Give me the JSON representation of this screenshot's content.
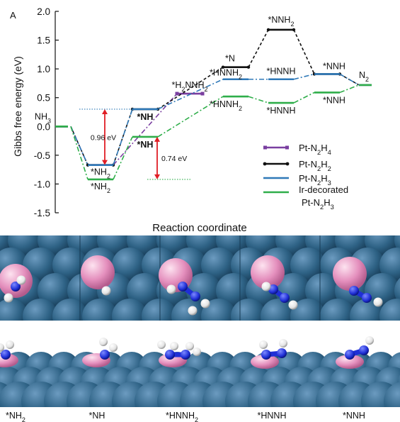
{
  "panel_label": "A",
  "chart_data": {
    "type": "line",
    "xlabel": "Reaction coordinate",
    "ylabel": "Gibbs free energy (eV)",
    "ylim": [
      -1.5,
      2.0
    ],
    "yticks": [
      "2.0",
      "1.5",
      "1.0",
      "0.5",
      "0.0",
      "-0.5",
      "-1.0",
      "-1.5"
    ],
    "grid": false,
    "legend_position": "right",
    "steps": 8,
    "series": [
      {
        "name": "Pt-N2H4",
        "color": "#7a3fa0",
        "style": "dashdot",
        "levels": [
          [
            0,
            0.0
          ],
          [
            1,
            -0.67
          ],
          [
            3,
            0.57
          ]
        ]
      },
      {
        "name": "Pt-N2H2",
        "color": "#111111",
        "style": "dashed",
        "levels": [
          [
            0,
            0.0
          ],
          [
            1,
            -0.67
          ],
          [
            2,
            0.3
          ],
          [
            4,
            1.03
          ],
          [
            5,
            1.68
          ],
          [
            6,
            0.91
          ],
          [
            7,
            0.72
          ]
        ]
      },
      {
        "name": "Pt-N2H3",
        "color": "#2f79b8",
        "style": "dashdot",
        "levels": [
          [
            0,
            0.0
          ],
          [
            1,
            -0.67
          ],
          [
            2,
            0.3
          ],
          [
            4,
            0.82
          ],
          [
            5,
            0.82
          ],
          [
            6,
            0.91
          ],
          [
            7,
            0.72
          ]
        ]
      },
      {
        "name": "Ir-decorated Pt-N2H3",
        "color": "#2fae4a",
        "style": "dashdot",
        "levels": [
          [
            0,
            0.0
          ],
          [
            1,
            -0.92
          ],
          [
            2,
            -0.18
          ],
          [
            4,
            0.52
          ],
          [
            5,
            0.41
          ],
          [
            6,
            0.59
          ],
          [
            7,
            0.72
          ]
        ]
      }
    ],
    "level_labels": [
      {
        "text": "NH3",
        "step": 0,
        "y": 0.0
      },
      {
        "text": "*NH2",
        "step": 1,
        "y": -0.67
      },
      {
        "text": "*NH2",
        "step": 1,
        "y": -0.92
      },
      {
        "text": "*H2NNH2",
        "step": 3,
        "y": 0.57
      },
      {
        "text": "*NH",
        "step": 2,
        "y": 0.3
      },
      {
        "text": "*NH",
        "step": 2,
        "y": -0.18
      },
      {
        "text": "*N",
        "step": 4,
        "y": 1.03
      },
      {
        "text": "*NNH2",
        "step": 5,
        "y": 1.68
      },
      {
        "text": "*HNNH",
        "step": 5,
        "y": 0.82
      },
      {
        "text": "*HNNH2",
        "step": 4,
        "y": 0.82
      },
      {
        "text": "*HNNH2",
        "step": 4,
        "y": 0.52
      },
      {
        "text": "*HNNH",
        "step": 5,
        "y": 0.41
      },
      {
        "text": "*NNH",
        "step": 6,
        "y": 0.91
      },
      {
        "text": "*NNH",
        "step": 6,
        "y": 0.59
      },
      {
        "text": "N2",
        "step": 7,
        "y": 0.72
      }
    ],
    "annotations": [
      {
        "text": "0.96 eV",
        "from": -0.67,
        "to": 0.3
      },
      {
        "text": "0.74 eV",
        "from": -0.92,
        "to": -0.18
      }
    ]
  },
  "structure_labels": [
    "*NH2",
    "*NH",
    "*HNNH2",
    "*HNNH",
    "*NNH"
  ],
  "colors": {
    "slab": "#2e6285",
    "dopant": "#e48fbd",
    "nitrogen": "#1f2fd6",
    "hydrogen": "#f2f2f2"
  }
}
